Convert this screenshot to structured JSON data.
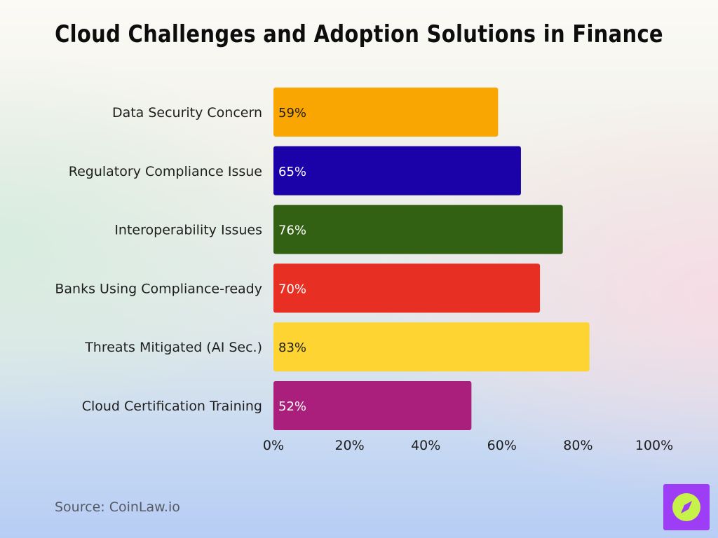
{
  "title": "Cloud Challenges and Adoption Solutions in Finance",
  "source": "Source: CoinLaw.io",
  "logo": {
    "icon": "compass-icon",
    "bg_color": "#9d3df5",
    "icon_color": "#c6f24a"
  },
  "chart_data": {
    "type": "bar",
    "orientation": "horizontal",
    "title": "Cloud Challenges and Adoption Solutions in Finance",
    "xlabel": "",
    "ylabel": "",
    "categories": [
      "Data Security Concern",
      "Regulatory Compliance Issue",
      "Interoperability Issues",
      "Banks Using Compliance-ready",
      "Threats Mitigated (AI Sec.)",
      "Cloud Certification Training"
    ],
    "values": [
      59,
      65,
      76,
      70,
      83,
      52
    ],
    "value_labels": [
      "59%",
      "65%",
      "76%",
      "70%",
      "83%",
      "52%"
    ],
    "colors": [
      "#f9a602",
      "#1b02a8",
      "#336114",
      "#e82f24",
      "#fdd431",
      "#a91f7b"
    ],
    "label_colors": [
      "#1e1e1e",
      "#ffffff",
      "#ffffff",
      "#ffffff",
      "#1e1e1e",
      "#ffffff"
    ],
    "xlim": [
      0,
      100
    ],
    "xticks": [
      0,
      20,
      40,
      60,
      80,
      100
    ],
    "xtick_labels": [
      "0%",
      "20%",
      "40%",
      "60%",
      "80%",
      "100%"
    ],
    "grid": false,
    "legend": "none"
  }
}
